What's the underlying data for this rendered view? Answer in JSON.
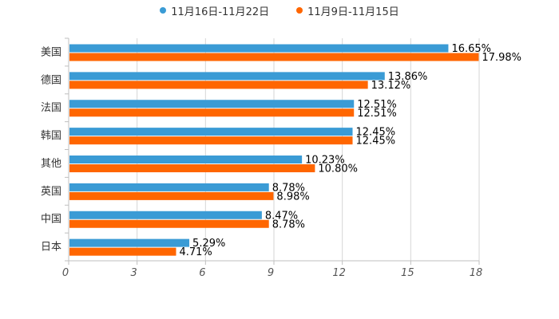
{
  "chart_data": {
    "type": "bar",
    "orientation": "horizontal",
    "title": "",
    "xlabel": "",
    "ylabel": "",
    "categories": [
      "美国",
      "德国",
      "法国",
      "韩国",
      "其他",
      "英国",
      "中国",
      "日本"
    ],
    "series": [
      {
        "name": "11月16日-11月22日",
        "color": "#3a9bd5",
        "values": [
          16.65,
          13.86,
          12.51,
          12.45,
          10.23,
          8.78,
          8.47,
          5.29
        ],
        "labels": [
          "16.65%",
          "13.86%",
          "12.51%",
          "12.45%",
          "10.23%",
          "8.78%",
          "8.47%",
          "5.29%"
        ]
      },
      {
        "name": "11月9日-11月15日",
        "color": "#ff6600",
        "values": [
          17.98,
          13.12,
          12.51,
          12.45,
          10.8,
          8.98,
          8.78,
          4.71
        ],
        "labels": [
          "17.98%",
          "13.12%",
          "12.51%",
          "12.45%",
          "10.80%",
          "8.98%",
          "8.78%",
          "4.71%"
        ]
      }
    ],
    "xlim": [
      0,
      18
    ],
    "xticks": [
      0,
      3,
      6,
      9,
      12,
      15,
      18
    ],
    "xtick_labels": [
      "0",
      "3",
      "6",
      "9",
      "12",
      "15",
      "18"
    ],
    "grid": true,
    "legend_position": "top-center"
  }
}
